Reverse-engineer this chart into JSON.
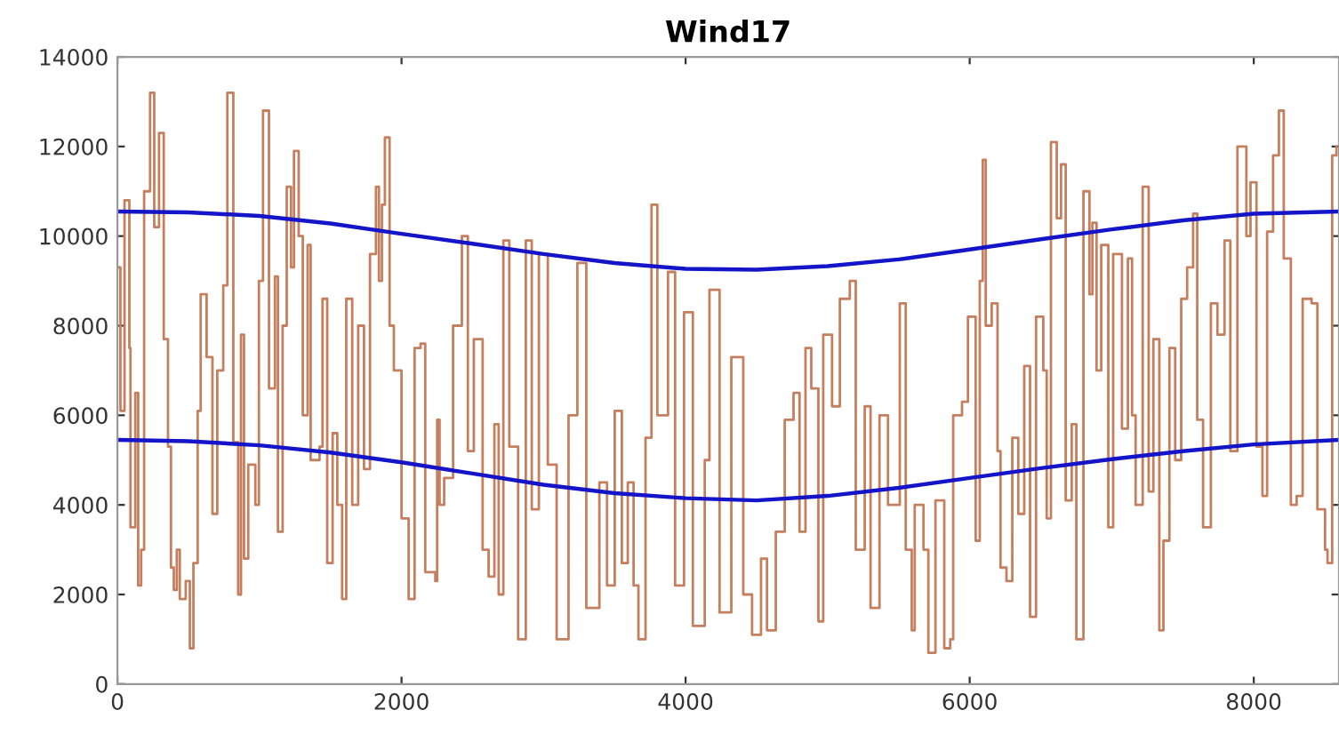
{
  "chart_data": {
    "type": "step",
    "title": "Wind17",
    "xlim": [
      0,
      8600
    ],
    "xticks": [
      0,
      2000,
      4000,
      6000,
      8000
    ],
    "ylim": [
      0,
      14000
    ],
    "yticks": [
      0,
      2000,
      4000,
      6000,
      8000,
      10000,
      12000,
      14000
    ],
    "grid": false,
    "series": [
      {
        "color": "#c47f5e",
        "x": [
          0,
          21,
          50,
          84,
          92,
          126,
          146,
          167,
          188,
          230,
          259,
          293,
          326,
          356,
          377,
          397,
          418,
          439,
          481,
          510,
          535,
          565,
          586,
          628,
          669,
          703,
          745,
          774,
          816,
          850,
          870,
          891,
          921,
          971,
          996,
          1025,
          1067,
          1109,
          1130,
          1163,
          1192,
          1222,
          1243,
          1276,
          1305,
          1339,
          1360,
          1423,
          1444,
          1477,
          1515,
          1548,
          1582,
          1611,
          1653,
          1695,
          1736,
          1778,
          1820,
          1841,
          1862,
          1883,
          1916,
          1946,
          2000,
          2050,
          2092,
          2134,
          2167,
          2238,
          2251,
          2268,
          2300,
          2363,
          2425,
          2467,
          2509,
          2571,
          2613,
          2654,
          2684,
          2717,
          2759,
          2821,
          2875,
          2917,
          2967,
          3030,
          3092,
          3176,
          3238,
          3301,
          3393,
          3447,
          3501,
          3551,
          3593,
          3634,
          3668,
          3718,
          3760,
          3801,
          3876,
          3926,
          3989,
          4051,
          4135,
          4168,
          4239,
          4322,
          4406,
          4468,
          4531,
          4573,
          4635,
          4698,
          4760,
          4802,
          4844,
          4885,
          4935,
          4969,
          5031,
          5086,
          5156,
          5198,
          5261,
          5302,
          5365,
          5425,
          5508,
          5550,
          5592,
          5613,
          5675,
          5709,
          5759,
          5821,
          5863,
          5884,
          5946,
          5988,
          6042,
          6071,
          6092,
          6113,
          6155,
          6196,
          6217,
          6259,
          6300,
          6342,
          6384,
          6425,
          6467,
          6518,
          6542,
          6572,
          6613,
          6643,
          6676,
          6718,
          6751,
          6801,
          6843,
          6864,
          6893,
          6926,
          6976,
          7010,
          7072,
          7114,
          7143,
          7168,
          7218,
          7260,
          7293,
          7335,
          7364,
          7406,
          7447,
          7489,
          7531,
          7573,
          7602,
          7643,
          7698,
          7744,
          7794,
          7835,
          7885,
          7948,
          7977,
          8019,
          8061,
          8094,
          8136,
          8177,
          8211,
          8261,
          8302,
          8344,
          8407,
          8448,
          8502,
          8519,
          8552,
          8582
        ],
        "values": [
          9300,
          6100,
          10800,
          7500,
          3500,
          6500,
          2200,
          3000,
          11000,
          13200,
          10200,
          12300,
          7700,
          5300,
          2600,
          2100,
          3000,
          1900,
          2300,
          800,
          2700,
          6100,
          8700,
          7300,
          3800,
          7000,
          8900,
          13200,
          5400,
          2000,
          7800,
          2800,
          4900,
          4000,
          9000,
          12800,
          6600,
          9100,
          3400,
          8000,
          11100,
          9300,
          11900,
          10000,
          6000,
          9800,
          5000,
          5300,
          8600,
          2700,
          5600,
          4000,
          1900,
          8600,
          4000,
          8000,
          4800,
          9600,
          11100,
          9000,
          10700,
          12200,
          8000,
          7000,
          3700,
          1900,
          7500,
          7600,
          2500,
          2300,
          5900,
          4000,
          4600,
          8000,
          10000,
          5200,
          7700,
          3000,
          2400,
          5800,
          2000,
          9900,
          5300,
          1000,
          9900,
          3900,
          9600,
          4900,
          1000,
          6000,
          9400,
          1700,
          4500,
          2200,
          6100,
          2700,
          4500,
          2200,
          1000,
          5500,
          10700,
          6000,
          9200,
          2200,
          8300,
          1300,
          5000,
          8800,
          1600,
          7300,
          2000,
          1100,
          2800,
          1200,
          3400,
          5900,
          6500,
          3400,
          7500,
          6600,
          1400,
          7800,
          6200,
          8600,
          9000,
          3000,
          6200,
          1700,
          6000,
          4000,
          8500,
          3000,
          1200,
          4000,
          3000,
          700,
          4100,
          800,
          1000,
          6000,
          6300,
          8200,
          3200,
          9000,
          11700,
          8000,
          8500,
          5200,
          2600,
          2300,
          5500,
          3800,
          7100,
          1500,
          8200,
          7000,
          3700,
          12100,
          10400,
          11600,
          4100,
          5800,
          1000,
          11000,
          8700,
          10300,
          7000,
          9800,
          3500,
          9600,
          5700,
          9500,
          6000,
          4000,
          11100,
          4300,
          7700,
          1200,
          3200,
          7500,
          5000,
          8600,
          9300,
          10500,
          5900,
          3500,
          8500,
          7800,
          9900,
          5200,
          12000,
          10000,
          11200,
          5300,
          4200,
          10100,
          11800,
          12800,
          9500,
          4000,
          4200,
          8600,
          8500,
          3900,
          3000,
          2700,
          11800,
          12000
        ]
      },
      {
        "type": "line",
        "color": "#1414c8",
        "x": [
          0,
          500,
          1000,
          1500,
          2000,
          2500,
          3000,
          3500,
          4000,
          4500,
          5000,
          5500,
          6000,
          6500,
          7000,
          7500,
          8000,
          8600
        ],
        "values": [
          10550,
          10530,
          10450,
          10280,
          10050,
          9830,
          9600,
          9400,
          9270,
          9250,
          9330,
          9480,
          9700,
          9930,
          10150,
          10350,
          10500,
          10550
        ]
      },
      {
        "type": "line",
        "color": "#1414c8",
        "x": [
          0,
          500,
          1000,
          1500,
          2000,
          2500,
          3000,
          3500,
          4000,
          4500,
          5000,
          5500,
          6000,
          6500,
          7000,
          7500,
          8000,
          8600
        ],
        "values": [
          5450,
          5420,
          5330,
          5170,
          4950,
          4700,
          4450,
          4260,
          4150,
          4100,
          4200,
          4380,
          4600,
          4820,
          5020,
          5200,
          5350,
          5450
        ]
      }
    ]
  }
}
